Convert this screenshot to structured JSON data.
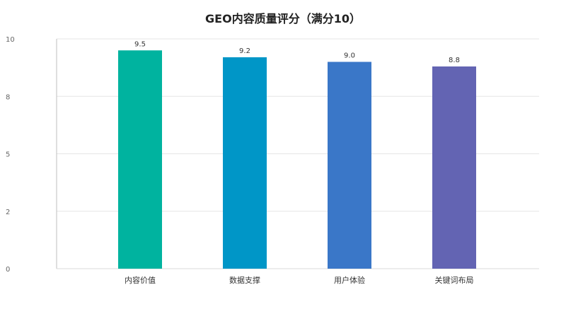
{
  "chart_data": {
    "type": "bar",
    "title": "GEO内容质量评分（满分10）",
    "categories": [
      "内容价值",
      "数据支撑",
      "用户体验",
      "关键词布局"
    ],
    "values": [
      9.5,
      9.2,
      9.0,
      8.8
    ],
    "value_labels": [
      "9.5",
      "9.2",
      "9.0",
      "8.8"
    ],
    "colors": [
      "#00b39f",
      "#0096c7",
      "#3a77c8",
      "#6364b3"
    ],
    "ylim": [
      0,
      10
    ],
    "y_ticks": [
      0,
      2.5,
      5,
      7.5,
      10
    ],
    "y_tick_labels": [
      "0",
      "2",
      "5",
      "8",
      "10"
    ],
    "grid": true,
    "legend": "none",
    "xlabel": "",
    "ylabel": ""
  }
}
